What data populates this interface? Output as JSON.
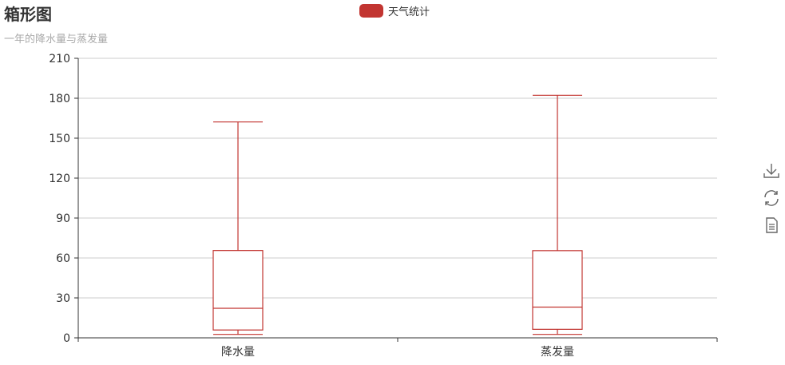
{
  "title": "箱形图",
  "subtitle": "一年的降水量与蒸发量",
  "legend": {
    "label": "天气统计",
    "color": "#c23531"
  },
  "toolbox": [
    "download-icon",
    "refresh-icon",
    "data-view-icon"
  ],
  "chart_data": {
    "type": "boxplot",
    "series": [
      {
        "name": "天气统计"
      }
    ],
    "categories": [
      "降水量",
      "蒸发量"
    ],
    "boxes": [
      {
        "category": "降水量",
        "min": 2.6,
        "q1": 5.9,
        "median": 22.2,
        "q3": 65.6,
        "max": 162.2
      },
      {
        "category": "蒸发量",
        "min": 2.6,
        "q1": 6.4,
        "median": 23.1,
        "q3": 65.5,
        "max": 182.2
      }
    ],
    "ylim": [
      0,
      210
    ],
    "yticks": [
      0,
      30,
      60,
      90,
      120,
      150,
      180,
      210
    ],
    "grid": "horizontal",
    "legend_position": "top-center",
    "color": "#c23531"
  }
}
